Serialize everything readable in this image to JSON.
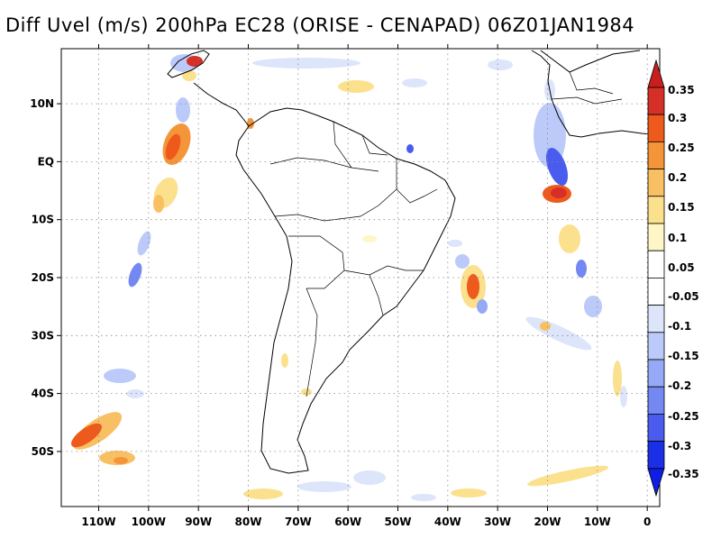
{
  "title": "Diff Uvel (m/s) 200hPa EC28 (ORISE - CENAPAD) 06Z01JAN1984",
  "map": {
    "lat_labels": [
      {
        "label": "10N",
        "lat": 10
      },
      {
        "label": "EQ",
        "lat": 0
      },
      {
        "label": "10S",
        "lat": -10
      },
      {
        "label": "20S",
        "lat": -20
      },
      {
        "label": "30S",
        "lat": -30
      },
      {
        "label": "40S",
        "lat": -40
      },
      {
        "label": "50S",
        "lat": -50
      }
    ],
    "lon_labels": [
      {
        "label": "110W",
        "lon": -110
      },
      {
        "label": "100W",
        "lon": -100
      },
      {
        "label": "90W",
        "lon": -90
      },
      {
        "label": "80W",
        "lon": -80
      },
      {
        "label": "70W",
        "lon": -70
      },
      {
        "label": "60W",
        "lon": -60
      },
      {
        "label": "50W",
        "lon": -50
      },
      {
        "label": "40W",
        "lon": -40
      },
      {
        "label": "30W",
        "lon": -30
      },
      {
        "label": "20W",
        "lon": -20
      },
      {
        "label": "10W",
        "lon": -10
      },
      {
        "label": "0",
        "lon": 0
      }
    ],
    "lon_range": [
      -117.5,
      2.5
    ],
    "lat_range": [
      -59.5,
      19.5
    ],
    "grid": "dotted"
  },
  "colorbar": {
    "labels": [
      "0.35",
      "0.3",
      "0.25",
      "0.2",
      "0.15",
      "0.1",
      "0.05",
      "-0.05",
      "-0.1",
      "-0.15",
      "-0.2",
      "-0.25",
      "-0.3",
      "-0.35"
    ],
    "colors": [
      "#d62f27",
      "#ed5a1c",
      "#f5953a",
      "#f9c063",
      "#fbe08d",
      "#fef6c4",
      "#ffffff",
      "#ffffff",
      "#dde5fb",
      "#bccafa",
      "#96a9f6",
      "#7388f2",
      "#4a5cee",
      "#1a2fe6"
    ],
    "top_color": "#c81e1e",
    "bottom_color": "#0f1ee6"
  }
}
